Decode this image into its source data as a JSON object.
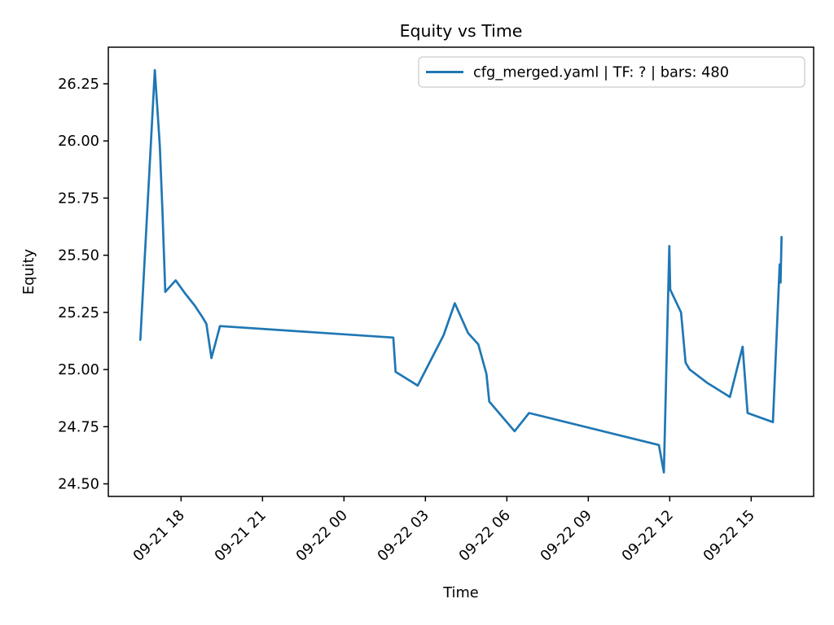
{
  "page": {
    "background": "#ffffff"
  },
  "chart_data": {
    "type": "line",
    "title": "Equity vs Time",
    "xlabel": "Time",
    "ylabel": "Equity",
    "grid": false,
    "legend": {
      "position": "upper right",
      "entries": [
        {
          "label": "cfg_merged.yaml | TF: ? | bars: 480",
          "color": "#1f77b4"
        }
      ]
    },
    "line_color": "#1f77b4",
    "spine_color": "#000000",
    "legend_border_color": "#cccccc",
    "x_ticks": [
      "09-21 18",
      "09-21 21",
      "09-22 00",
      "09-22 03",
      "09-22 06",
      "09-22 09",
      "09-22 12",
      "09-22 15"
    ],
    "y_ticks": [
      24.5,
      24.75,
      25.0,
      25.25,
      25.5,
      25.75,
      26.0,
      26.25
    ],
    "ylim": [
      24.445,
      26.41
    ],
    "xlim_hours": [
      15.32,
      41.3
    ],
    "hours_reference": "09-21 00:00",
    "series": [
      {
        "name": "cfg_merged.yaml | TF: ? | bars: 480",
        "color": "#1f77b4",
        "x": [
          "09-21 16:30",
          "09-21 17:02",
          "09-21 17:13",
          "09-21 17:19",
          "09-21 17:25",
          "09-21 17:48",
          "09-21 18:10",
          "09-21 18:30",
          "09-21 18:47",
          "09-21 18:56",
          "09-21 19:07",
          "09-21 19:26",
          "09-22 01:49",
          "09-22 01:54",
          "09-22 02:43",
          "09-22 03:40",
          "09-22 04:05",
          "09-22 04:34",
          "09-22 04:57",
          "09-22 05:15",
          "09-22 05:21",
          "09-22 06:17",
          "09-22 06:49",
          "09-22 11:36",
          "09-22 11:47",
          "09-22 11:59",
          "09-22 12:01",
          "09-22 12:25",
          "09-22 12:35",
          "09-22 12:44",
          "09-22 13:24",
          "09-22 14:13",
          "09-22 14:41",
          "09-22 14:52",
          "09-22 15:48",
          "09-22 16:03",
          "09-22 16:05",
          "09-22 16:07"
        ],
        "values": [
          25.13,
          26.31,
          25.98,
          25.68,
          25.34,
          25.39,
          25.33,
          25.28,
          25.23,
          25.2,
          25.05,
          25.19,
          25.14,
          24.99,
          24.93,
          25.15,
          25.29,
          25.16,
          25.11,
          24.98,
          24.86,
          24.73,
          24.81,
          24.67,
          24.55,
          25.54,
          25.35,
          25.25,
          25.03,
          25.0,
          24.94,
          24.88,
          25.1,
          24.81,
          24.77,
          25.46,
          25.38,
          25.58
        ]
      }
    ]
  }
}
